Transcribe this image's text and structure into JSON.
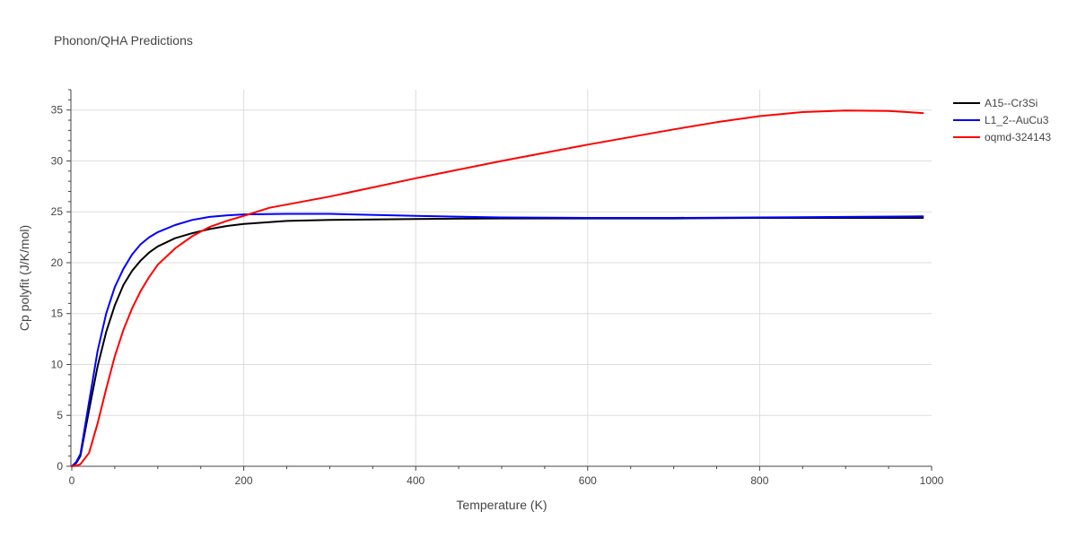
{
  "chart_data": {
    "type": "line",
    "title": "Phonon/QHA Predictions",
    "xlabel": "Temperature (K)",
    "ylabel": "Cp polyfit (J/K/mol)",
    "xlim": [
      0,
      1000
    ],
    "ylim": [
      0,
      37
    ],
    "xticks": [
      0,
      200,
      400,
      600,
      800,
      1000
    ],
    "yticks": [
      0,
      5,
      10,
      15,
      20,
      25,
      30,
      35
    ],
    "grid": true,
    "legend_position": "top-right",
    "series": [
      {
        "name": "A15--Cr3Si",
        "color": "#000000",
        "x": [
          0,
          5,
          10,
          20,
          30,
          40,
          50,
          60,
          70,
          80,
          90,
          100,
          120,
          140,
          160,
          180,
          200,
          250,
          300,
          400,
          500,
          600,
          700,
          800,
          900,
          990
        ],
        "y": [
          0,
          0.3,
          1.0,
          5.5,
          9.8,
          13.2,
          15.8,
          17.8,
          19.2,
          20.2,
          21.0,
          21.6,
          22.4,
          22.9,
          23.3,
          23.6,
          23.8,
          24.1,
          24.2,
          24.3,
          24.35,
          24.35,
          24.35,
          24.4,
          24.4,
          24.4
        ]
      },
      {
        "name": "L1_2--AuCu3",
        "color": "#0000ff",
        "x": [
          0,
          5,
          10,
          20,
          30,
          40,
          50,
          60,
          70,
          80,
          90,
          100,
          120,
          140,
          160,
          180,
          200,
          250,
          300,
          400,
          500,
          600,
          700,
          800,
          900,
          990
        ],
        "y": [
          0,
          0.4,
          1.2,
          6.3,
          11.3,
          15.0,
          17.6,
          19.4,
          20.8,
          21.8,
          22.5,
          23.0,
          23.7,
          24.2,
          24.5,
          24.65,
          24.75,
          24.8,
          24.8,
          24.6,
          24.45,
          24.4,
          24.4,
          24.45,
          24.5,
          24.55
        ]
      },
      {
        "name": "oqmd-324143",
        "color": "#ff0000",
        "x": [
          0,
          5,
          10,
          20,
          30,
          40,
          50,
          60,
          70,
          80,
          90,
          100,
          120,
          140,
          160,
          180,
          200,
          230,
          300,
          400,
          500,
          600,
          700,
          750,
          800,
          850,
          900,
          950,
          990
        ],
        "y": [
          0,
          0.05,
          0.2,
          1.3,
          4.2,
          7.6,
          10.8,
          13.4,
          15.5,
          17.2,
          18.6,
          19.8,
          21.4,
          22.6,
          23.5,
          24.1,
          24.6,
          25.4,
          26.5,
          28.3,
          30.0,
          31.6,
          33.1,
          33.8,
          34.4,
          34.8,
          34.95,
          34.9,
          34.7
        ]
      }
    ]
  }
}
